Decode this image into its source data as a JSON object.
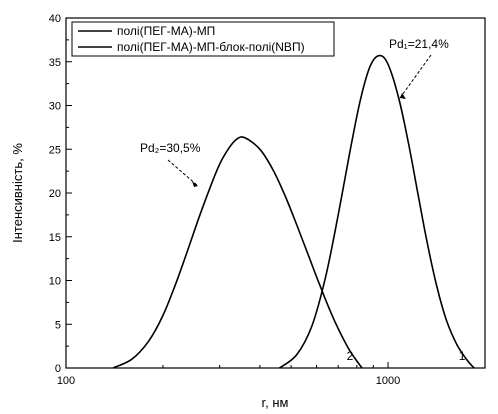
{
  "chart_data": {
    "type": "line",
    "xscale": "log",
    "xlim": [
      100,
      2000
    ],
    "ylim": [
      0,
      40
    ],
    "xlabel": "r, нм",
    "ylabel": "Інтенсивність, %",
    "xticks": [
      100,
      1000
    ],
    "xtick_labels": [
      "100",
      "1000"
    ],
    "yticks": [
      0,
      5,
      10,
      15,
      20,
      25,
      30,
      35,
      40
    ],
    "ytick_labels": [
      "0",
      "5",
      "10",
      "15",
      "20",
      "25",
      "30",
      "35",
      "40"
    ],
    "legend": {
      "placement": "top-left",
      "entries": [
        "полі(ПЕГ-МА)-МП",
        "полі(ПЕГ-МА)-МП-блок-полі(NВП)"
      ]
    },
    "series": [
      {
        "name": "полі(ПЕГ-МА)-МП",
        "curve_label": "1",
        "annotation": "Pd₁=21,4%",
        "x": [
          460,
          520,
          580,
          640,
          700,
          760,
          820,
          880,
          940,
          1000,
          1080,
          1160,
          1240,
          1320,
          1420,
          1520,
          1640,
          1760,
          1850
        ],
        "y": [
          0,
          1.5,
          4.8,
          10.4,
          17.5,
          24.6,
          30.6,
          34.5,
          35.7,
          34.7,
          30.8,
          25.5,
          19.8,
          14.5,
          9.2,
          5.4,
          2.6,
          0.9,
          0
        ]
      },
      {
        "name": "полі(ПЕГ-МА)-МП-блок-полі(NВП)",
        "curve_label": "2",
        "annotation": "Pd₂=30,5%",
        "x": [
          140,
          160,
          180,
          200,
          220,
          240,
          260,
          280,
          300,
          320,
          340,
          360,
          400,
          440,
          480,
          520,
          560,
          600,
          640,
          680,
          720,
          760,
          800,
          830
        ],
        "y": [
          0,
          1.0,
          3.0,
          6.0,
          9.8,
          13.7,
          17.4,
          20.6,
          23.3,
          25.1,
          26.2,
          26.3,
          25.0,
          22.6,
          19.6,
          16.4,
          13.3,
          10.4,
          7.8,
          5.5,
          3.6,
          2.0,
          0.8,
          0
        ]
      }
    ]
  }
}
